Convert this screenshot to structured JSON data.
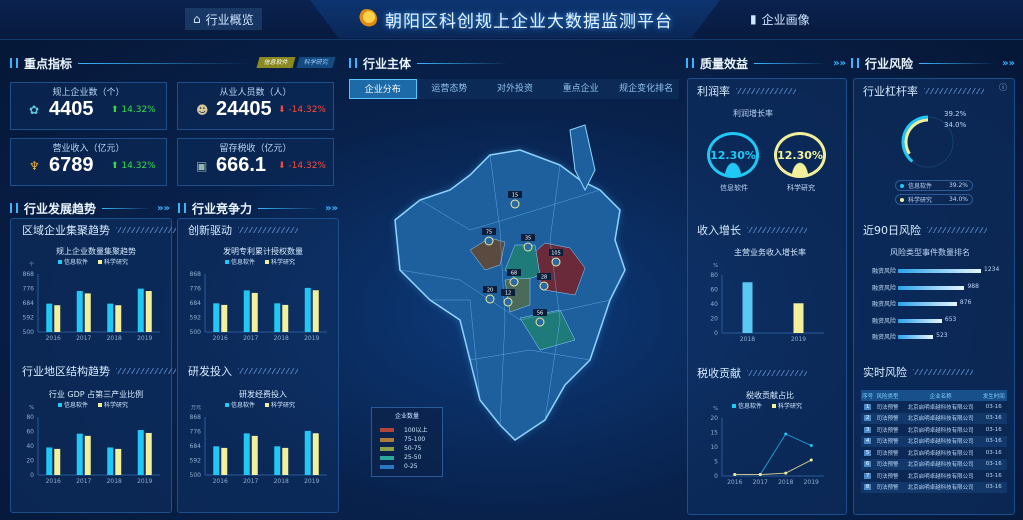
{
  "header": {
    "title": "朝阳区科创规上企业大数据监测平台",
    "nav_left": "行业概览",
    "nav_right": "企业画像"
  },
  "colors": {
    "info": "#1fc8f5",
    "sci": "#f2f09a",
    "up": "#33e04a",
    "down": "#ff4a3a"
  },
  "key": {
    "title": "重点指标",
    "toggle": [
      "信息软件",
      "科学研究"
    ],
    "items": [
      {
        "label": "规上企业数（个）",
        "value": "4405",
        "change": "14.32%",
        "dir": "up",
        "icon": "gear-icon"
      },
      {
        "label": "从业人员数（人）",
        "value": "24405",
        "change": "-14.32%",
        "dir": "down",
        "icon": "people-icon"
      },
      {
        "label": "营业收入（亿元）",
        "value": "6789",
        "change": "14.32%",
        "dir": "up",
        "icon": "trophy-icon"
      },
      {
        "label": "留存税收（亿元）",
        "value": "666.1",
        "change": "-14.32%",
        "dir": "down",
        "icon": "coins-icon"
      }
    ]
  },
  "legend": [
    "信息软件",
    "科学研究"
  ],
  "trend": {
    "title": "行业发展趋势",
    "sub1": "区域企业集聚趋势",
    "sub2": "行业地区结构趋势"
  },
  "compete": {
    "title": "行业竞争力",
    "sub1": "创新驱动",
    "sub2": "研发投入"
  },
  "chart_data": [
    {
      "type": "bar",
      "title": "规上企业数量集聚趋势",
      "unit": "个",
      "categories": [
        "2016",
        "2017",
        "2018",
        "2019"
      ],
      "ylim": [
        500,
        868
      ],
      "ticks": [
        500,
        592,
        684,
        776,
        868
      ],
      "series": [
        {
          "name": "信息软件",
          "values": [
            680,
            760,
            680,
            775
          ]
        },
        {
          "name": "科学研究",
          "values": [
            670,
            745,
            670,
            760
          ]
        }
      ]
    },
    {
      "type": "bar",
      "title": "发明专利累计授权数量",
      "unit": "",
      "categories": [
        "2016",
        "2017",
        "2018",
        "2019"
      ],
      "ylim": [
        500,
        868
      ],
      "ticks": [
        500,
        592,
        684,
        776,
        868
      ],
      "series": [
        {
          "name": "信息软件",
          "values": [
            682,
            764,
            682,
            780
          ]
        },
        {
          "name": "科学研究",
          "values": [
            672,
            748,
            672,
            765
          ]
        }
      ]
    },
    {
      "type": "bar",
      "title": "行业 GDP 占第三产业比例",
      "unit": "%",
      "categories": [
        "2016",
        "2017",
        "2018",
        "2019"
      ],
      "ylim": [
        0,
        80
      ],
      "ticks": [
        0,
        20,
        40,
        60,
        80
      ],
      "series": [
        {
          "name": "信息软件",
          "values": [
            38,
            57,
            38,
            62
          ]
        },
        {
          "name": "科学研究",
          "values": [
            36,
            54,
            36,
            58
          ]
        }
      ]
    },
    {
      "type": "bar",
      "title": "研发经费投入",
      "unit": "万元",
      "categories": [
        "2016",
        "2017",
        "2018",
        "2019"
      ],
      "ylim": [
        500,
        868
      ],
      "ticks": [
        500,
        592,
        684,
        776,
        868
      ],
      "series": [
        {
          "name": "信息软件",
          "values": [
            682,
            764,
            682,
            780
          ]
        },
        {
          "name": "科学研究",
          "values": [
            672,
            748,
            672,
            765
          ]
        }
      ]
    },
    {
      "type": "bar",
      "title": "主营业务收入增长率",
      "unit": "%",
      "categories": [
        "2018",
        "2019"
      ],
      "ylim": [
        0,
        80
      ],
      "ticks": [
        0,
        20,
        40,
        60,
        80
      ],
      "series": [
        {
          "values": [
            70,
            41
          ]
        }
      ]
    },
    {
      "type": "line",
      "title": "税收贡献占比",
      "unit": "%",
      "categories": [
        "2016",
        "2017",
        "2018",
        "2019"
      ],
      "ylim": [
        0,
        20
      ],
      "ticks": [
        0,
        5,
        10,
        15,
        20
      ],
      "series": [
        {
          "name": "信息软件",
          "values": [
            0.5,
            0.5,
            14.5,
            10.5
          ]
        },
        {
          "name": "科学研究",
          "values": [
            0.5,
            0.5,
            1,
            5.5
          ]
        }
      ]
    }
  ],
  "center": {
    "title": "行业主体",
    "tabs": [
      "企业分布",
      "运营态势",
      "对外投资",
      "重点企业",
      "规企变化排名"
    ],
    "markers": [
      "15",
      "75",
      "35",
      "105",
      "68",
      "28",
      "20",
      "12",
      "56"
    ],
    "legend_title": "企业数量",
    "legend": [
      {
        "label": "100以上",
        "color": "#b0463a"
      },
      {
        "label": "75-100",
        "color": "#b07a3a"
      },
      {
        "label": "50-75",
        "color": "#8aa04a"
      },
      {
        "label": "25-50",
        "color": "#2aa89a"
      },
      {
        "label": "0-25",
        "color": "#2a78c0"
      }
    ]
  },
  "quality": {
    "title": "质量效益",
    "profit": "利润率",
    "profit_chart": "利润增长率",
    "rings": [
      {
        "value": "12.30%",
        "label": "信息软件"
      },
      {
        "value": "12.30%",
        "label": "科学研究"
      }
    ],
    "income": "收入增长",
    "tax": "税收贡献"
  },
  "risk": {
    "title": "行业风险",
    "leverage": "行业杠杆率",
    "lev": [
      {
        "label": "信息软件",
        "value": "39.2%",
        "pct": 39.2
      },
      {
        "label": "科学研究",
        "value": "34.0%",
        "pct": 34.0
      }
    ],
    "recent": "近90日风险",
    "rank_title": "风险类型事件数量排名",
    "rank": [
      {
        "label": "融资风险",
        "value": 1234
      },
      {
        "label": "融资风险",
        "value": 988
      },
      {
        "label": "融资风险",
        "value": 876
      },
      {
        "label": "融资风险",
        "value": 653
      },
      {
        "label": "融资风险",
        "value": 523
      }
    ],
    "realtime": "实时风险",
    "cols": [
      "序号",
      "风险类型",
      "企业名称",
      "发生时间"
    ],
    "rows": [
      [
        "1",
        "司法预警",
        "北京启明卓越科技有限公司",
        "03-16"
      ],
      [
        "2",
        "司法预警",
        "北京启明卓越科技有限公司",
        "03-16"
      ],
      [
        "3",
        "司法预警",
        "北京启明卓越科技有限公司",
        "03-16"
      ],
      [
        "4",
        "司法预警",
        "北京启明卓越科技有限公司",
        "03-16"
      ],
      [
        "5",
        "司法预警",
        "北京启明卓越科技有限公司",
        "03-16"
      ],
      [
        "6",
        "司法预警",
        "北京启明卓越科技有限公司",
        "03-16"
      ],
      [
        "7",
        "司法预警",
        "北京启明卓越科技有限公司",
        "03-16"
      ],
      [
        "8",
        "司法预警",
        "北京启明卓越科技有限公司",
        "03-16"
      ]
    ]
  }
}
